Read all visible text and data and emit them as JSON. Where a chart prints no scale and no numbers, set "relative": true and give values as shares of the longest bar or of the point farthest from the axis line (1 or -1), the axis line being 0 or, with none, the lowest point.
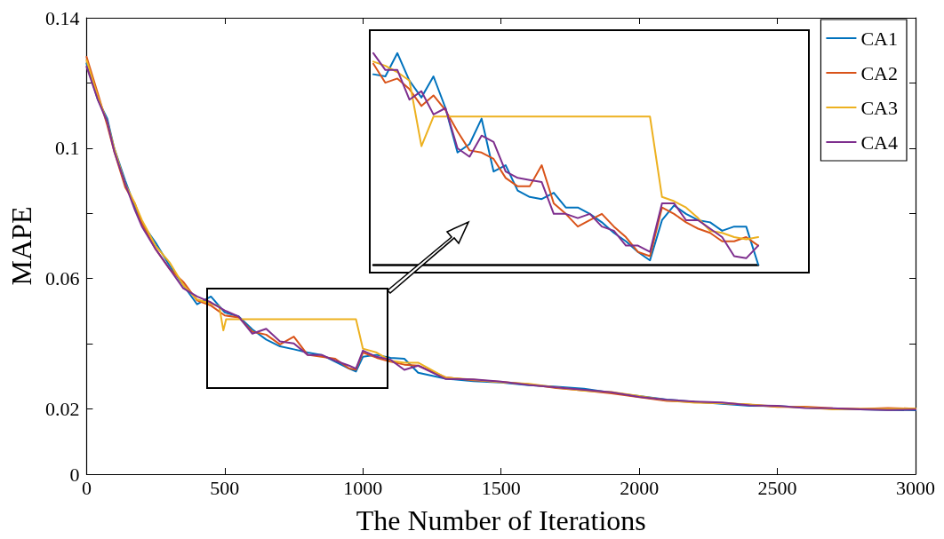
{
  "chart_data": [
    {
      "type": "line",
      "xlabel": "The Number of Iterations",
      "ylabel": "MAPE",
      "xlim": [
        0,
        3000
      ],
      "xticks": [
        0,
        500,
        1000,
        1500,
        2000,
        2500,
        3000
      ],
      "ylim": [
        0,
        0.14
      ],
      "yticks": [
        0,
        0.02,
        {
          "value": 0.04,
          "label": null
        },
        0.06,
        {
          "value": 0.08,
          "label": null
        },
        0.1,
        {
          "value": 0.12,
          "label": null
        },
        0.14
      ],
      "legend": "top right",
      "line_style": "solid",
      "x": [
        0,
        40,
        75,
        100,
        140,
        175,
        200,
        250,
        300,
        350,
        400,
        450,
        500,
        550,
        600,
        650,
        700,
        750,
        800,
        850,
        900,
        950,
        975,
        1000,
        1050,
        1100,
        1150,
        1200,
        1300,
        1400,
        1500,
        1600,
        1700,
        1800,
        1900,
        2000,
        2100,
        2200,
        2300,
        2400,
        2500,
        2600,
        2700,
        2800,
        2900,
        3000
      ],
      "series": [
        {
          "name": "CA1",
          "color": "#0072bd",
          "values": [
            0.126,
            0.115,
            0.109,
            0.1,
            0.09,
            0.082,
            0.077,
            0.071,
            0.064,
            0.058,
            0.0521,
            0.0545,
            0.0496,
            0.0484,
            0.0444,
            0.0413,
            0.0392,
            0.0383,
            0.0373,
            0.0366,
            0.0345,
            0.0324,
            0.0315,
            0.036,
            0.0366,
            0.0357,
            0.0354,
            0.0311,
            0.0293,
            0.0285,
            0.0281,
            0.0273,
            0.0268,
            0.0262,
            0.025,
            0.024,
            0.0229,
            0.0222,
            0.0216,
            0.021,
            0.0209,
            0.0204,
            0.0201,
            0.0199,
            0.0197,
            0.0196
          ]
        },
        {
          "name": "CA2",
          "color": "#d95319",
          "values": [
            0.128,
            0.117,
            0.107,
            0.099,
            0.088,
            0.083,
            0.077,
            0.069,
            0.063,
            0.059,
            0.0533,
            0.0517,
            0.0487,
            0.0481,
            0.0437,
            0.0428,
            0.0398,
            0.0422,
            0.0366,
            0.036,
            0.0354,
            0.0324,
            0.0321,
            0.0373,
            0.0357,
            0.0345,
            0.0336,
            0.0333,
            0.0297,
            0.0288,
            0.0283,
            0.0276,
            0.0264,
            0.0257,
            0.0248,
            0.0236,
            0.0225,
            0.0221,
            0.0218,
            0.0213,
            0.0206,
            0.0207,
            0.0202,
            0.02,
            0.0203,
            0.0201
          ]
        },
        {
          "name": "CA3",
          "color": "#edb120",
          "x": [
            0,
            40,
            75,
            100,
            140,
            175,
            200,
            250,
            300,
            350,
            400,
            450,
            480,
            495,
            505,
            975,
            1000,
            1050,
            1100,
            1150,
            1200,
            1300,
            1400,
            1500,
            1600,
            1700,
            1800,
            1900,
            2000,
            2100,
            2200,
            2300,
            2400,
            2500,
            2600,
            2700,
            2800,
            2900,
            3000
          ],
          "values": [
            0.127,
            0.116,
            0.108,
            0.1,
            0.089,
            0.083,
            0.078,
            0.07,
            0.065,
            0.058,
            0.0536,
            0.0523,
            0.0515,
            0.0441,
            0.0475,
            0.0475,
            0.0385,
            0.0373,
            0.0348,
            0.0342,
            0.0342,
            0.0296,
            0.029,
            0.0282,
            0.0277,
            0.0266,
            0.0256,
            0.0252,
            0.024,
            0.0227,
            0.0219,
            0.0218,
            0.0214,
            0.0208,
            0.0205,
            0.0199,
            0.02,
            0.02,
            0.0201
          ]
        },
        {
          "name": "CA4",
          "color": "#7e2f8e",
          "values": [
            0.125,
            0.115,
            0.108,
            0.099,
            0.089,
            0.081,
            0.076,
            0.069,
            0.063,
            0.057,
            0.0545,
            0.0527,
            0.0502,
            0.0484,
            0.0431,
            0.0446,
            0.0407,
            0.0401,
            0.0366,
            0.0366,
            0.0348,
            0.0333,
            0.0324,
            0.0379,
            0.036,
            0.0351,
            0.032,
            0.0333,
            0.0292,
            0.0291,
            0.0284,
            0.0274,
            0.0266,
            0.0259,
            0.0251,
            0.0237,
            0.0228,
            0.0223,
            0.022,
            0.0211,
            0.021,
            0.0203,
            0.0202,
            0.0199,
            0.0197,
            0.0198
          ]
        }
      ]
    },
    {
      "type": "line",
      "relative": true,
      "line_style": "solid",
      "categories": [
        null,
        null,
        null,
        null,
        null,
        null,
        null,
        null,
        null,
        null,
        null,
        null,
        null,
        null,
        null,
        null,
        null,
        null,
        null,
        null,
        null,
        null,
        null,
        null,
        null,
        null,
        null,
        null,
        null,
        null,
        null,
        null,
        null
      ],
      "series": [
        {
          "color": "#0072bd",
          "values": [
            0.9,
            0.89,
            1.0,
            0.87,
            0.79,
            0.89,
            0.74,
            0.53,
            0.57,
            0.69,
            0.44,
            0.47,
            0.35,
            0.32,
            0.31,
            0.34,
            0.27,
            0.27,
            0.24,
            0.2,
            0.15,
            0.11,
            0.06,
            0.02,
            0.21,
            0.28,
            0.24,
            0.21,
            0.2,
            0.16,
            0.18,
            0.18,
            0.0
          ]
        },
        {
          "color": "#d95319",
          "values": [
            0.95,
            0.86,
            0.88,
            0.83,
            0.75,
            0.8,
            0.73,
            0.63,
            0.54,
            0.53,
            0.5,
            0.41,
            0.37,
            0.37,
            0.47,
            0.29,
            0.24,
            0.18,
            0.21,
            0.24,
            0.18,
            0.13,
            0.06,
            0.04,
            0.27,
            0.24,
            0.2,
            0.17,
            0.15,
            0.11,
            0.11,
            0.13,
            0.09
          ]
        },
        {
          "color": "#edb120",
          "values": [
            0.96,
            0.94,
            0.91,
            0.87,
            0.56,
            0.7,
            0.7,
            0.7,
            0.7,
            0.7,
            0.7,
            0.7,
            0.7,
            0.7,
            0.7,
            0.7,
            0.7,
            0.7,
            0.7,
            0.7,
            0.7,
            0.7,
            0.7,
            0.7,
            0.32,
            0.3,
            0.27,
            0.22,
            0.16,
            0.15,
            0.13,
            0.12,
            0.13
          ]
        },
        {
          "color": "#7e2f8e",
          "values": [
            1.0,
            0.92,
            0.92,
            0.78,
            0.82,
            0.71,
            0.74,
            0.55,
            0.51,
            0.61,
            0.58,
            0.44,
            0.41,
            0.4,
            0.39,
            0.24,
            0.24,
            0.22,
            0.24,
            0.18,
            0.16,
            0.09,
            0.09,
            0.06,
            0.29,
            0.29,
            0.21,
            0.21,
            0.17,
            0.13,
            0.04,
            0.03,
            0.09
          ]
        }
      ]
    }
  ]
}
